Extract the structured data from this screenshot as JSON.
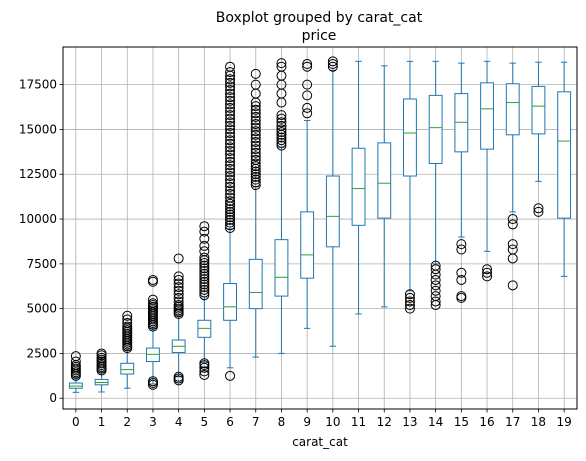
{
  "chart_data": {
    "type": "boxplot",
    "title": "Boxplot grouped by carat_cat",
    "subtitle": "price",
    "xlabel": "carat_cat",
    "ylabel": "",
    "categories": [
      "0",
      "1",
      "2",
      "3",
      "4",
      "5",
      "6",
      "7",
      "8",
      "9",
      "10",
      "11",
      "12",
      "13",
      "14",
      "15",
      "16",
      "17",
      "18",
      "19"
    ],
    "ylim": [
      -600,
      19600
    ],
    "yticks": [
      0,
      2500,
      5000,
      7500,
      10000,
      12500,
      15000,
      17500
    ],
    "ytick_labels": [
      "0",
      "2500",
      "5000",
      "7500",
      "10000",
      "12500",
      "15000",
      "17500"
    ],
    "grid": true,
    "colors": {
      "box": "#1f77b4",
      "median": "#2ca02c",
      "grid": "#b0b0b0",
      "flier": "#000000"
    },
    "boxes": [
      {
        "whislo": 330,
        "q1": 560,
        "med": 680,
        "q3": 850,
        "whishi": 1150,
        "fliers": [
          1250,
          1350,
          1450,
          1550,
          1650,
          1750,
          1850,
          2050,
          2350
        ]
      },
      {
        "whislo": 350,
        "q1": 750,
        "med": 880,
        "q3": 1050,
        "whishi": 1480,
        "fliers": [
          1550,
          1650,
          1750,
          1850,
          1950,
          2050,
          2150,
          2250,
          2400,
          2500
        ]
      },
      {
        "whislo": 560,
        "q1": 1350,
        "med": 1600,
        "q3": 1950,
        "whishi": 2700,
        "fliers": [
          2800,
          2900,
          3000,
          3100,
          3200,
          3300,
          3400,
          3500,
          3600,
          3700,
          3800,
          3900,
          4000,
          4200,
          4400,
          4600
        ]
      },
      {
        "whislo": 800,
        "q1": 2050,
        "med": 2450,
        "q3": 2800,
        "whishi": 3900,
        "fliers": [
          750,
          850,
          950,
          4000,
          4100,
          4200,
          4300,
          4400,
          4500,
          4600,
          4700,
          4800,
          4900,
          5000,
          5100,
          5200,
          5300,
          5500,
          6500,
          6600
        ]
      },
      {
        "whislo": 1200,
        "q1": 2550,
        "med": 2900,
        "q3": 3250,
        "whishi": 4600,
        "fliers": [
          1000,
          1100,
          1200,
          4700,
          4800,
          4900,
          5000,
          5100,
          5200,
          5400,
          5600,
          5800,
          6000,
          6200,
          6400,
          6600,
          6800,
          7800
        ]
      },
      {
        "whislo": 2000,
        "q1": 3400,
        "med": 3900,
        "q3": 4350,
        "whishi": 5650,
        "fliers": [
          1300,
          1500,
          1700,
          1850,
          1950,
          5750,
          5900,
          6050,
          6200,
          6350,
          6500,
          6650,
          6800,
          6950,
          7100,
          7250,
          7400,
          7550,
          7700,
          7850,
          8200,
          8500,
          8900,
          9300,
          9600
        ]
      },
      {
        "whislo": 1700,
        "q1": 4350,
        "med": 5100,
        "q3": 6400,
        "whishi": 9450,
        "fliers": [
          1250,
          9500,
          9650,
          9800,
          9950,
          10100,
          10250,
          10400,
          10550,
          10700,
          10850,
          11000,
          11200,
          11400,
          11600,
          11800,
          12000,
          12200,
          12400,
          12600,
          12800,
          13000,
          13200,
          13400,
          13600,
          13800,
          14000,
          14200,
          14400,
          14600,
          14800,
          15000,
          15200,
          15400,
          15600,
          15800,
          16000,
          16200,
          16400,
          16600,
          16800,
          17000,
          17200,
          17400,
          17600,
          17800,
          18000,
          18200,
          18500
        ]
      },
      {
        "whislo": 2300,
        "q1": 5000,
        "med": 5900,
        "q3": 7750,
        "whishi": 11800,
        "fliers": [
          11900,
          12050,
          12200,
          12350,
          12500,
          12650,
          12800,
          12950,
          13100,
          13300,
          13500,
          13700,
          13900,
          14100,
          14300,
          14500,
          14700,
          14900,
          15100,
          15300,
          15500,
          15700,
          15900,
          16100,
          16300,
          16500,
          17000,
          17500,
          18100
        ]
      },
      {
        "whislo": 2500,
        "q1": 5700,
        "med": 6750,
        "q3": 8850,
        "whishi": 14000,
        "fliers": [
          14100,
          14250,
          14400,
          14550,
          14700,
          14850,
          15000,
          15200,
          15400,
          15600,
          15800,
          16500,
          17000,
          17500,
          18000,
          18500,
          18700
        ]
      },
      {
        "whislo": 3900,
        "q1": 6700,
        "med": 8000,
        "q3": 10400,
        "whishi": 15500,
        "fliers": [
          15900,
          16200,
          16900,
          17500,
          18500,
          18650
        ]
      },
      {
        "whislo": 2900,
        "q1": 8450,
        "med": 10150,
        "q3": 12400,
        "whishi": 18300,
        "fliers": [
          18500,
          18650,
          18800
        ]
      },
      {
        "whislo": 4700,
        "q1": 9650,
        "med": 11700,
        "q3": 13950,
        "whishi": 18800,
        "fliers": []
      },
      {
        "whislo": 5100,
        "q1": 10050,
        "med": 12000,
        "q3": 14250,
        "whishi": 18550,
        "fliers": []
      },
      {
        "whislo": 6000,
        "q1": 12400,
        "med": 14800,
        "q3": 16700,
        "whishi": 18800,
        "fliers": [
          5000,
          5200,
          5400,
          5600,
          5800
        ]
      },
      {
        "whislo": 7500,
        "q1": 13100,
        "med": 15100,
        "q3": 16900,
        "whishi": 18800,
        "fliers": [
          5200,
          5400,
          5700,
          6000,
          6300,
          6600,
          6900,
          7200,
          7400
        ]
      },
      {
        "whislo": 9000,
        "q1": 13750,
        "med": 15400,
        "q3": 17000,
        "whishi": 18700,
        "fliers": [
          5600,
          5700,
          6600,
          7000,
          8300,
          8600
        ]
      },
      {
        "whislo": 8200,
        "q1": 13900,
        "med": 16150,
        "q3": 17600,
        "whishi": 18800,
        "fliers": [
          6800,
          7000,
          7200
        ]
      },
      {
        "whislo": 10400,
        "q1": 14700,
        "med": 16500,
        "q3": 17550,
        "whishi": 18700,
        "fliers": [
          6300,
          7800,
          8300,
          8600,
          9700,
          10000
        ]
      },
      {
        "whislo": 12100,
        "q1": 14750,
        "med": 16300,
        "q3": 17400,
        "whishi": 18750,
        "fliers": [
          10400,
          10600
        ]
      },
      {
        "whislo": 6800,
        "q1": 10050,
        "med": 14350,
        "q3": 17100,
        "whishi": 18750,
        "fliers": []
      }
    ]
  }
}
